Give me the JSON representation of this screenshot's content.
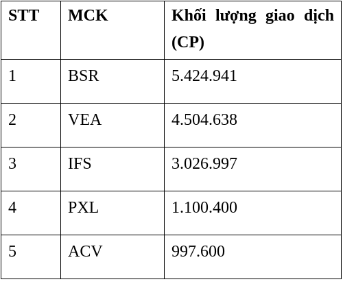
{
  "table": {
    "header": [
      "STT",
      "MCK",
      "Khối lượng giao dịch (CP)"
    ],
    "rows": [
      [
        "1",
        "BSR",
        "5.424.941"
      ],
      [
        "2",
        "VEA",
        "4.504.638"
      ],
      [
        "3",
        "IFS",
        "3.026.997"
      ],
      [
        "4",
        "PXL",
        "1.100.400"
      ],
      [
        "5",
        "ACV",
        "997.600"
      ]
    ]
  }
}
